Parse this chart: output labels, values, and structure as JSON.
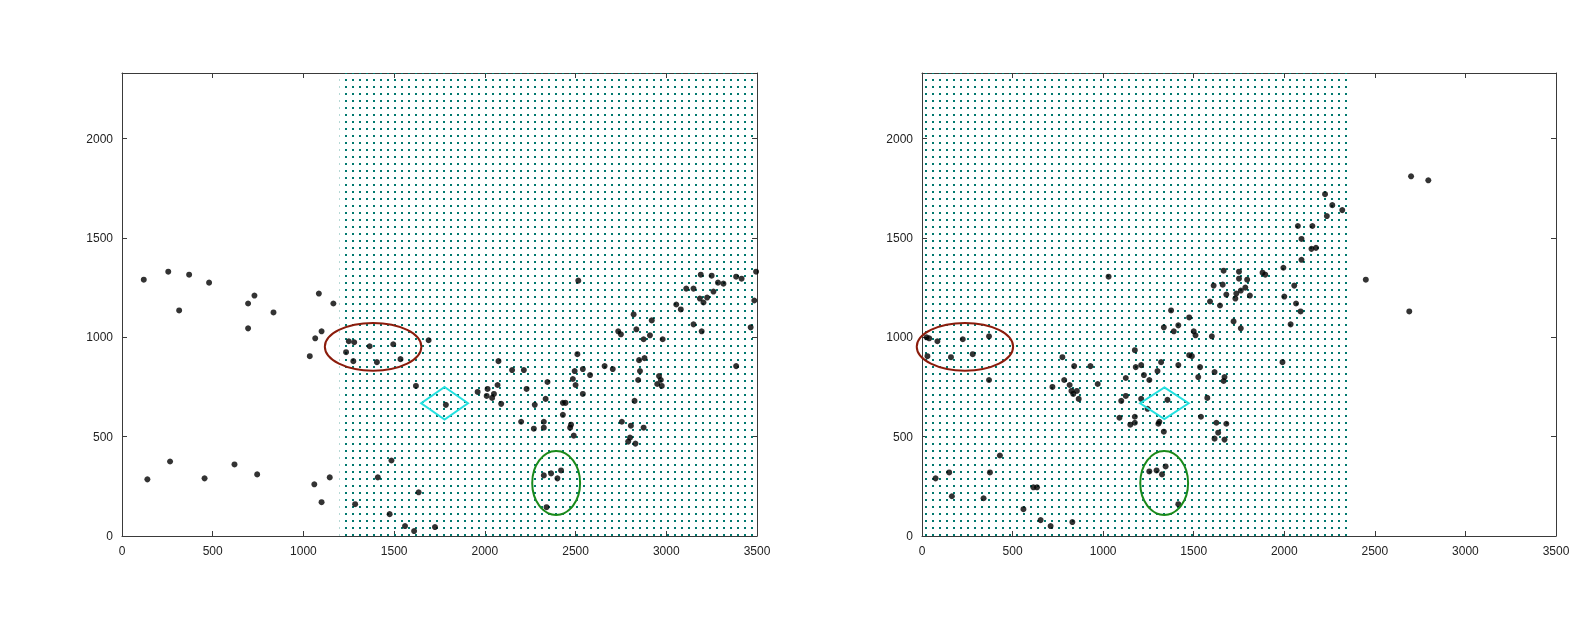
{
  "chart_data": [
    {
      "type": "scatter",
      "marker": "circle",
      "grid": false,
      "xlim": [
        0,
        3500
      ],
      "xticks": [
        0,
        500,
        1000,
        1500,
        2000,
        2500,
        3000,
        3500
      ],
      "ylim": [
        0,
        2330
      ],
      "yticks": [
        0,
        500,
        1000,
        1500,
        2000
      ],
      "bands": [
        {
          "axis": "x",
          "from": 1200,
          "to": 3500,
          "color": "#00786e"
        }
      ],
      "series": [
        {
          "color": "#000000",
          "x": [
            120,
            255,
            370,
            315,
            480,
            695,
            730,
            695,
            835,
            1085,
            1165,
            1065,
            1100,
            1035,
            1250,
            1280,
            1235,
            1365,
            1495,
            1275,
            1405,
            1535,
            1690,
            1620,
            1785,
            140,
            265,
            455,
            620,
            745,
            1060,
            1145,
            1100,
            1285,
            1410,
            1485,
            1635,
            1475,
            1560,
            1610,
            1725,
            1960,
            2015,
            2010,
            2040,
            2050,
            2070,
            2090,
            2075,
            2150,
            2215,
            2230,
            2275,
            2345,
            2335,
            2200,
            2270,
            2325,
            2325,
            2430,
            2445,
            2430,
            2475,
            2470,
            2490,
            2485,
            2495,
            2500,
            2510,
            2540,
            2580,
            2540,
            2515,
            2660,
            2705,
            2735,
            2750,
            2820,
            2835,
            2875,
            2910,
            2920,
            2980,
            2850,
            2880,
            2855,
            2845,
            2960,
            2970,
            2950,
            2975,
            2825,
            2755,
            2805,
            2875,
            2800,
            2790,
            2830,
            2325,
            2365,
            2400,
            2420,
            2340,
            3055,
            3080,
            3110,
            3150,
            3190,
            3250,
            3285,
            3315,
            3185,
            3205,
            3225,
            3260,
            3150,
            3195,
            3385,
            3415,
            3495,
            3485,
            3465,
            3385
          ],
          "values": [
            1290,
            1330,
            1315,
            1135,
            1275,
            1170,
            1210,
            1045,
            1125,
            1220,
            1170,
            995,
            1030,
            905,
            980,
            975,
            925,
            955,
            965,
            880,
            875,
            890,
            985,
            755,
            660,
            285,
            375,
            290,
            360,
            310,
            260,
            295,
            170,
            160,
            295,
            380,
            220,
            110,
            50,
            25,
            45,
            725,
            740,
            705,
            695,
            715,
            760,
            665,
            880,
            835,
            835,
            740,
            660,
            775,
            690,
            575,
            540,
            575,
            545,
            670,
            670,
            610,
            560,
            545,
            505,
            790,
            830,
            760,
            915,
            840,
            810,
            715,
            1285,
            855,
            840,
            1030,
            1015,
            1115,
            1040,
            990,
            1010,
            1085,
            990,
            885,
            895,
            830,
            785,
            805,
            785,
            765,
            755,
            680,
            575,
            555,
            545,
            495,
            475,
            465,
            305,
            315,
            290,
            330,
            145,
            1165,
            1140,
            1245,
            1245,
            1315,
            1310,
            1275,
            1270,
            1195,
            1175,
            1200,
            1230,
            1065,
            1030,
            1305,
            1295,
            1330,
            1185,
            1050,
            855
          ]
        }
      ]
    },
    {
      "type": "scatter",
      "marker": "circle",
      "grid": false,
      "xlim": [
        0,
        3500
      ],
      "xticks": [
        0,
        500,
        1000,
        1500,
        2000,
        2500,
        3000,
        3500
      ],
      "ylim": [
        0,
        2330
      ],
      "yticks": [
        0,
        500,
        1000,
        1500,
        2000
      ],
      "bands": [
        {
          "axis": "x",
          "from": 0,
          "to": 2360,
          "color": "#00786e"
        }
      ],
      "series": [
        {
          "color": "#000000",
          "x": [
            25,
            40,
            85,
            30,
            160,
            225,
            280,
            370,
            370,
            1030,
            775,
            840,
            930,
            785,
            815,
            825,
            855,
            835,
            865,
            720,
            970,
            430,
            150,
            75,
            375,
            165,
            340,
            615,
            635,
            560,
            655,
            710,
            830,
            1175,
            1180,
            1210,
            1225,
            1255,
            1300,
            1320,
            1125,
            1125,
            1100,
            1210,
            1355,
            1245,
            1090,
            1175,
            1150,
            1175,
            1305,
            1310,
            1335,
            1335,
            1375,
            1390,
            1415,
            1475,
            1500,
            1510,
            1475,
            1490,
            1415,
            1535,
            1525,
            1575,
            1540,
            1600,
            1590,
            1610,
            1645,
            1660,
            1665,
            1680,
            1615,
            1670,
            1665,
            1625,
            1680,
            1635,
            1615,
            1670,
            1720,
            1760,
            1730,
            1735,
            1750,
            1750,
            1795,
            1785,
            1810,
            1255,
            1295,
            1325,
            1345,
            1415,
            1760,
            1880,
            1895,
            1995,
            2055,
            2000,
            2065,
            2090,
            2035,
            1990,
            2095,
            2150,
            2175,
            2095,
            2075,
            2155,
            2225,
            2265,
            2235,
            2320,
            2450,
            2690,
            2700,
            2795
          ],
          "values": [
            1000,
            995,
            980,
            905,
            900,
            990,
            915,
            1005,
            785,
            1305,
            900,
            855,
            855,
            785,
            760,
            730,
            730,
            715,
            690,
            750,
            765,
            405,
            320,
            290,
            320,
            200,
            190,
            245,
            245,
            135,
            80,
            50,
            70,
            935,
            850,
            860,
            810,
            785,
            830,
            875,
            795,
            705,
            680,
            690,
            685,
            640,
            595,
            600,
            560,
            570,
            565,
            575,
            525,
            1050,
            1135,
            1030,
            1060,
            1100,
            1030,
            1010,
            910,
            905,
            860,
            850,
            800,
            695,
            600,
            1005,
            1180,
            1260,
            1160,
            1265,
            1335,
            1215,
            825,
            800,
            780,
            570,
            565,
            520,
            490,
            485,
            1080,
            1045,
            1195,
            1220,
            1330,
            1295,
            1290,
            1250,
            1210,
            325,
            330,
            310,
            350,
            160,
            1235,
            1325,
            1315,
            1350,
            1260,
            1205,
            1170,
            1130,
            1065,
            875,
            1390,
            1445,
            1450,
            1495,
            1560,
            1560,
            1720,
            1665,
            1610,
            1640,
            1290,
            1130,
            1810,
            1790
          ]
        }
      ]
    }
  ]
}
